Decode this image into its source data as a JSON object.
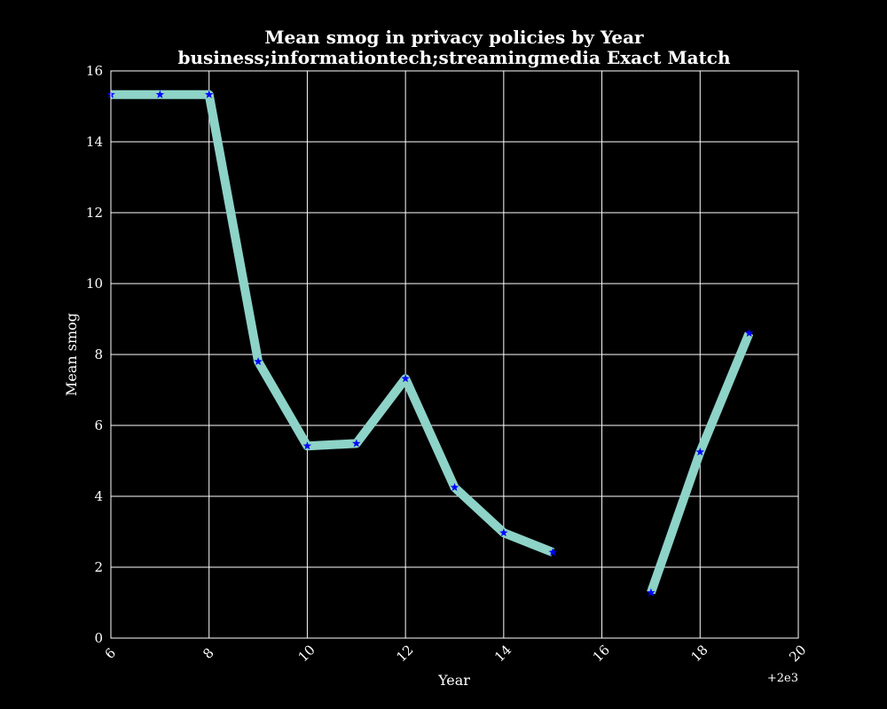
{
  "chart_data": {
    "type": "line",
    "title_line1": "Mean smog in privacy policies by Year",
    "title_line2": "business;informationtech;streamingmedia Exact Match",
    "xlabel": "Year",
    "ylabel": "Mean smog",
    "x_offset_label": "+2e3",
    "xlim": [
      6,
      20
    ],
    "ylim": [
      0,
      16
    ],
    "x_ticks": [
      6,
      8,
      10,
      12,
      14,
      16,
      18,
      20
    ],
    "y_ticks": [
      0,
      2,
      4,
      6,
      8,
      10,
      12,
      14,
      16
    ],
    "grid": true,
    "colors": {
      "line": "#8dd3c7",
      "marker": "#0000ff",
      "background": "#000000",
      "grid": "#ffffff",
      "text": "#ffffff"
    },
    "series": [
      {
        "x": [
          6,
          7,
          8,
          9,
          10,
          11,
          12,
          13,
          14,
          15,
          16,
          17,
          18,
          19
        ],
        "y": [
          15.33,
          15.33,
          15.33,
          7.8,
          5.42,
          5.49,
          7.32,
          4.25,
          2.97,
          2.42,
          null,
          1.28,
          5.25,
          8.6
        ]
      }
    ]
  }
}
